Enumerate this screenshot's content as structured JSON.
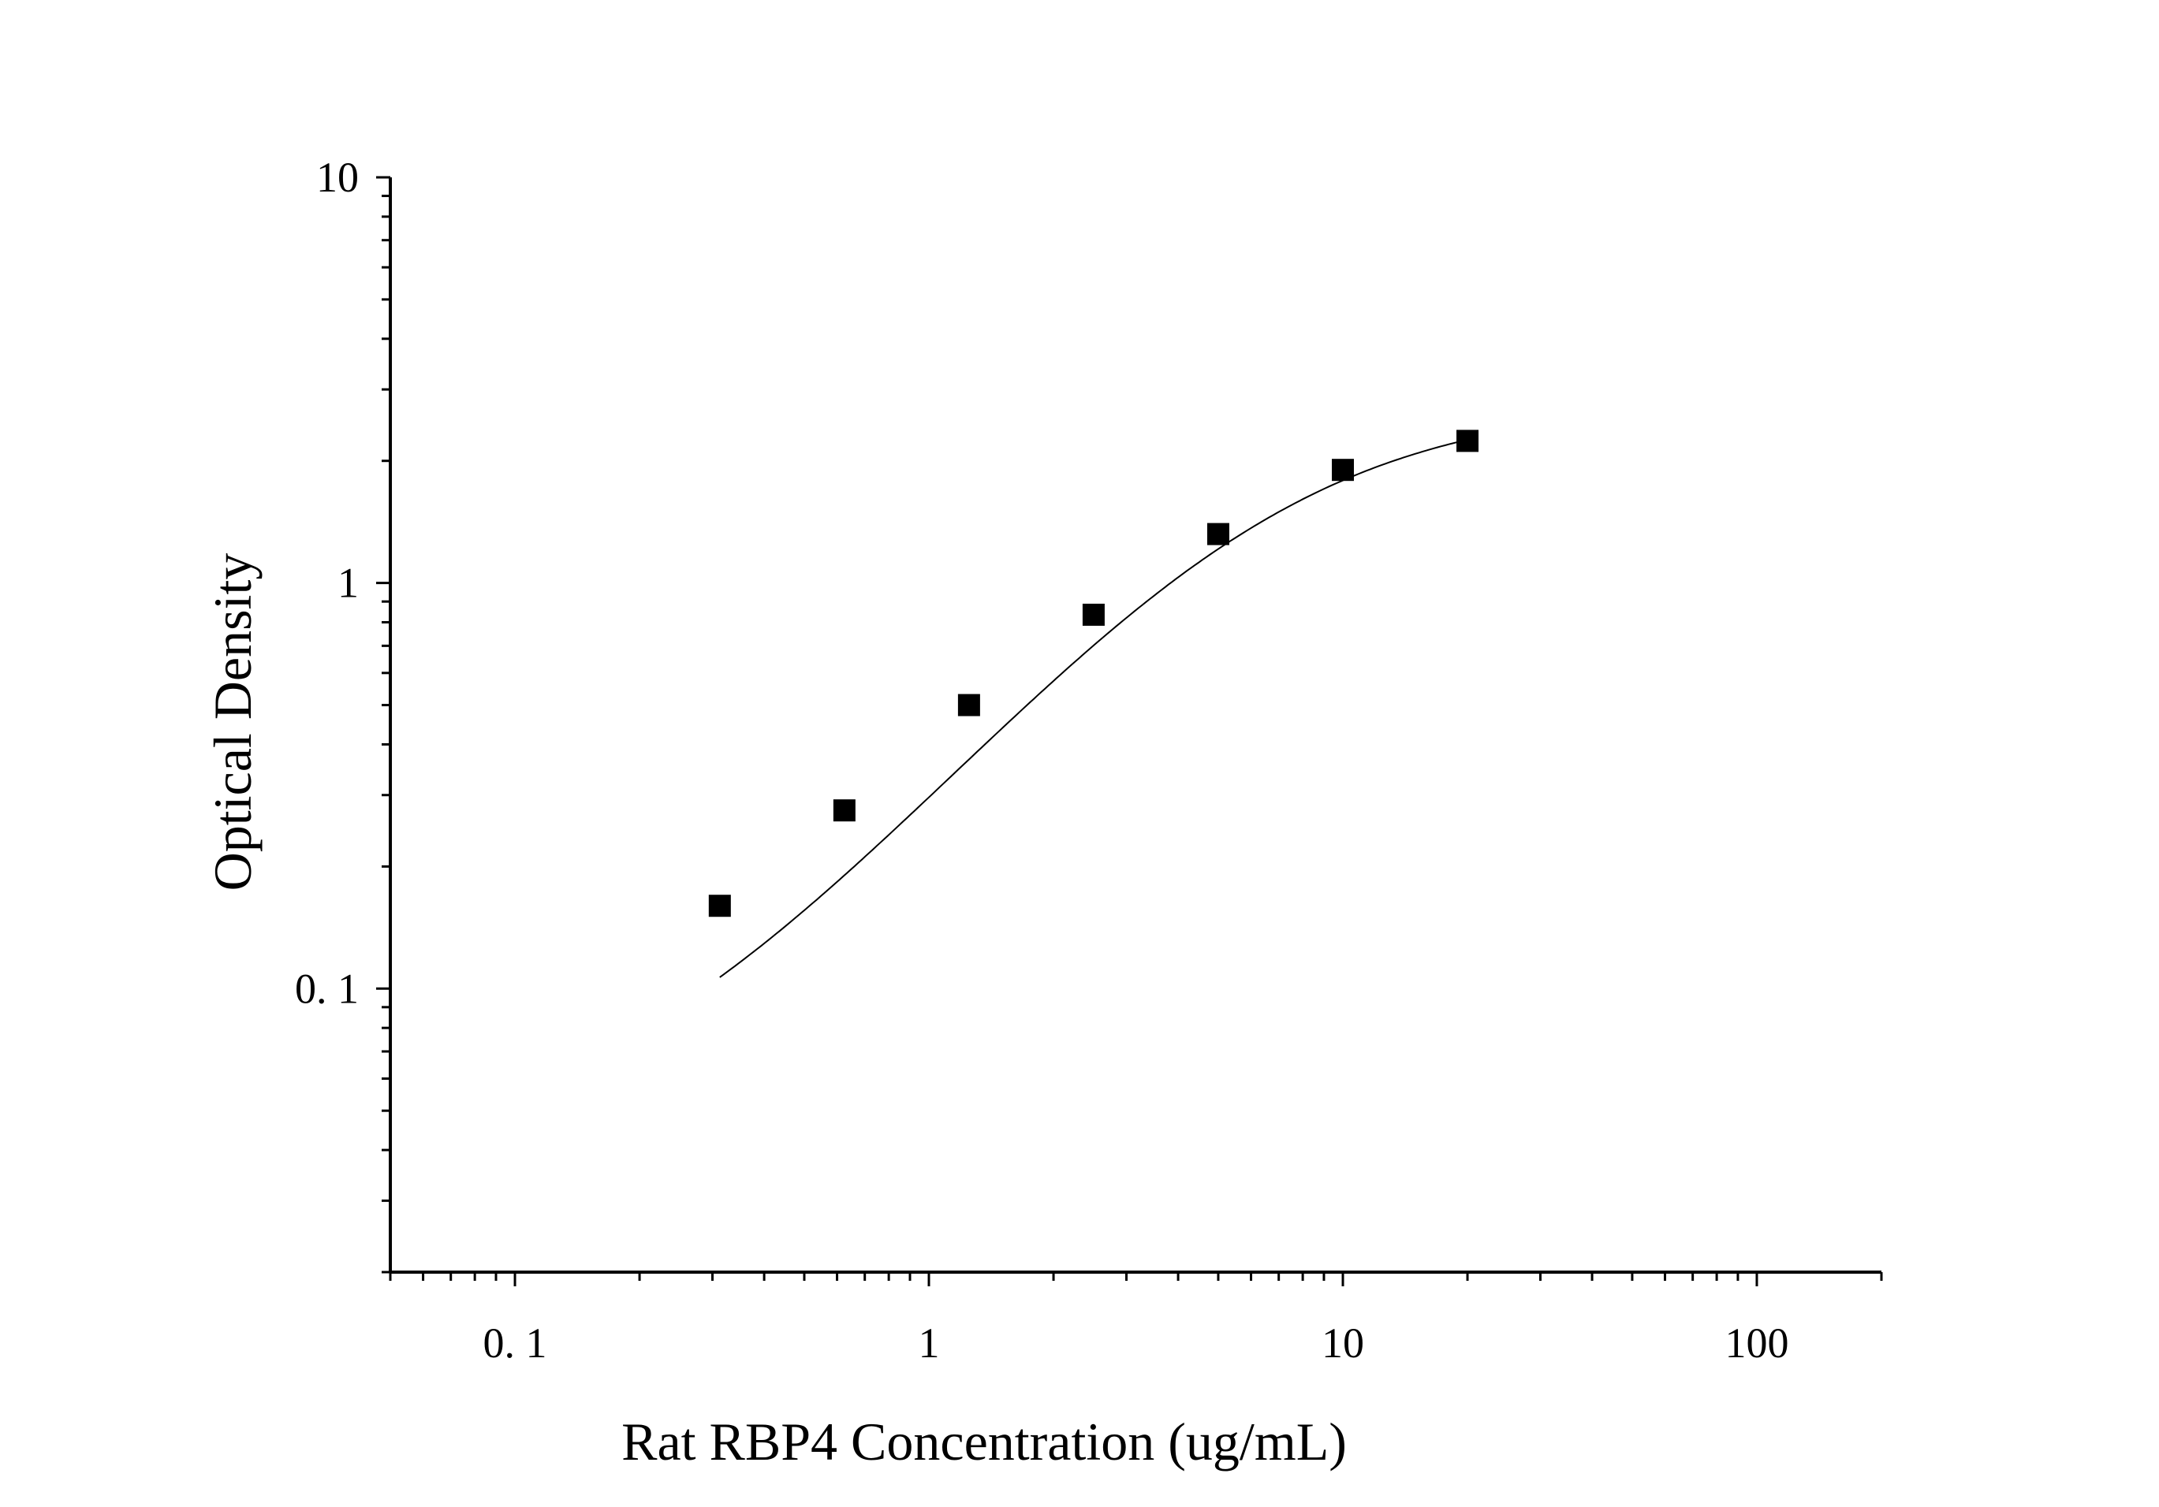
{
  "chart_data": {
    "type": "scatter",
    "title": "",
    "xlabel": "Rat RBP4 Concentration (ug/mL)",
    "ylabel": "Optical Density",
    "xscale": "log",
    "yscale": "log",
    "xlim": [
      0.05,
      200
    ],
    "ylim": [
      0.02,
      10
    ],
    "xticks": [
      {
        "value": 0.1,
        "label": "0. 1"
      },
      {
        "value": 1,
        "label": "1"
      },
      {
        "value": 10,
        "label": "10"
      },
      {
        "value": 100,
        "label": "100"
      }
    ],
    "yticks": [
      {
        "value": 0.1,
        "label": "0. 1"
      },
      {
        "value": 1,
        "label": "1"
      },
      {
        "value": 10,
        "label": "10"
      }
    ],
    "grid": false,
    "legend": "none",
    "marker_color": "#000000",
    "curve_color": "#000000",
    "series": [
      {
        "points": [
          {
            "x": 0.3125,
            "y": 0.16
          },
          {
            "x": 0.625,
            "y": 0.275
          },
          {
            "x": 1.25,
            "y": 0.5
          },
          {
            "x": 2.5,
            "y": 0.835
          },
          {
            "x": 5,
            "y": 1.32
          },
          {
            "x": 10,
            "y": 1.9
          },
          {
            "x": 20,
            "y": 2.24
          }
        ]
      }
    ],
    "fit": {
      "type": "4PL",
      "A": 0.041,
      "B": 1.23,
      "C": 6.4,
      "D": 2.8,
      "range": [
        0.3125,
        20
      ]
    }
  }
}
